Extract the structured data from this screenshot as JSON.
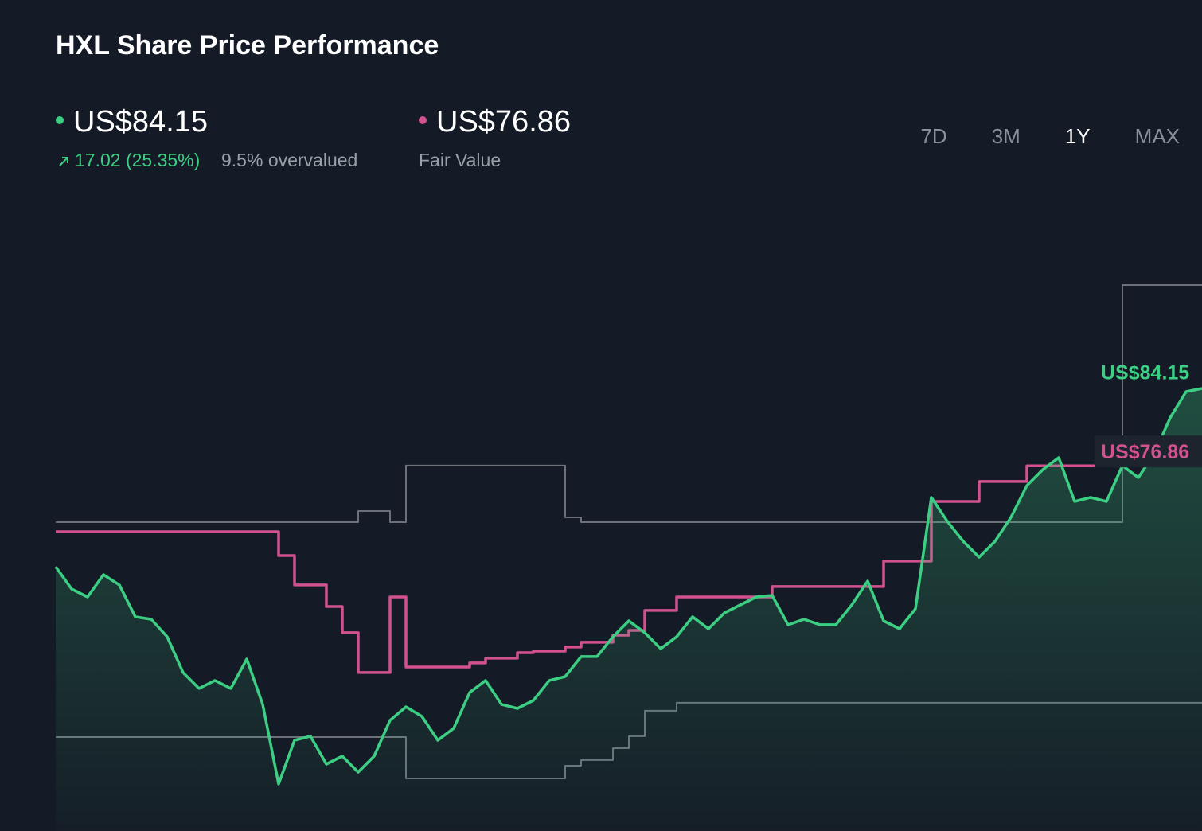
{
  "header": {
    "title": "HXL Share Price Performance",
    "price": "US$84.15",
    "change": "17.02 (25.35%)",
    "valuation": "9.5% overvalued",
    "fair_value": "US$76.86",
    "fair_value_label": "Fair Value",
    "ranges": [
      "7D",
      "3M",
      "1Y",
      "MAX"
    ],
    "selected_range": "1Y"
  },
  "chart_data": {
    "type": "line",
    "ylim": [
      42.45,
      102.75
    ],
    "fill_under": 0,
    "series": [
      {
        "color": "#3ccf84",
        "values": [
          67.35,
          65.25,
          64.5,
          66.6,
          65.63,
          62.63,
          62.4,
          60.75,
          57.38,
          55.88,
          56.63,
          55.88,
          58.65,
          54.38,
          46.88,
          51.0,
          51.38,
          48.75,
          49.5,
          48.0,
          49.5,
          52.88,
          54.15,
          53.25,
          51.0,
          52.13,
          55.5,
          56.63,
          54.38,
          54.0,
          54.75,
          56.63,
          57.0,
          58.88,
          58.88,
          60.75,
          62.25,
          61.13,
          59.63,
          60.75,
          62.63,
          61.5,
          63.0,
          63.75,
          64.5,
          64.65,
          61.88,
          62.4,
          61.88,
          61.88,
          63.75,
          66.0,
          62.25,
          61.5,
          63.38,
          73.88,
          71.63,
          69.75,
          68.25,
          69.75,
          72.0,
          75.0,
          76.5,
          77.63,
          73.5,
          73.88,
          73.5,
          76.88,
          75.75,
          78.0,
          81.38,
          83.85,
          84.15
        ]
      },
      {
        "color": "#d2528f",
        "line_shape": "step",
        "values": [
          70.65,
          70.65,
          70.65,
          70.65,
          70.65,
          70.65,
          70.65,
          70.65,
          70.65,
          70.65,
          70.65,
          70.65,
          70.65,
          70.65,
          68.4,
          65.63,
          65.63,
          63.6,
          61.13,
          57.38,
          57.38,
          64.5,
          57.9,
          57.9,
          57.9,
          57.9,
          58.28,
          58.73,
          58.73,
          59.25,
          59.4,
          59.4,
          59.78,
          60.23,
          60.23,
          60.9,
          61.35,
          63.23,
          63.23,
          64.5,
          64.5,
          64.5,
          64.5,
          64.5,
          64.5,
          65.48,
          65.48,
          65.48,
          65.48,
          65.48,
          65.48,
          65.48,
          67.88,
          67.88,
          67.88,
          73.5,
          73.5,
          73.5,
          75.38,
          75.38,
          75.38,
          76.86,
          76.86,
          76.86,
          76.86,
          76.86,
          76.86,
          76.86,
          76.86,
          76.86,
          76.86,
          76.86,
          76.86
        ]
      },
      {
        "color": "#6b7079",
        "line_shape": "step",
        "values": [
          71.55,
          71.55,
          71.55,
          71.55,
          71.55,
          71.55,
          71.55,
          71.55,
          71.55,
          71.55,
          71.55,
          71.55,
          71.55,
          71.55,
          71.55,
          71.55,
          71.55,
          71.55,
          71.55,
          72.6,
          72.6,
          71.55,
          76.88,
          76.88,
          76.88,
          76.88,
          76.88,
          76.88,
          76.88,
          76.88,
          76.88,
          76.88,
          72.0,
          71.55,
          71.55,
          71.55,
          71.55,
          71.55,
          71.55,
          71.55,
          71.55,
          71.55,
          71.55,
          71.55,
          71.55,
          71.55,
          71.55,
          71.55,
          71.55,
          71.55,
          71.55,
          71.55,
          71.55,
          71.55,
          71.55,
          71.55,
          71.55,
          71.55,
          71.55,
          71.55,
          71.55,
          71.55,
          71.55,
          71.55,
          71.55,
          71.55,
          71.55,
          93.9,
          93.9,
          93.9,
          93.9,
          93.9,
          93.9
        ]
      },
      {
        "color": "#6b7079",
        "line_shape": "step",
        "values": [
          51.3,
          51.3,
          51.3,
          51.3,
          51.3,
          51.3,
          51.3,
          51.3,
          51.3,
          51.3,
          51.3,
          51.3,
          51.3,
          51.3,
          51.3,
          51.3,
          51.3,
          51.3,
          51.3,
          51.3,
          51.3,
          51.3,
          47.4,
          47.4,
          47.4,
          47.4,
          47.4,
          47.4,
          47.4,
          47.4,
          47.4,
          47.4,
          48.6,
          49.13,
          49.13,
          50.25,
          51.38,
          53.78,
          53.78,
          54.53,
          54.53,
          54.53,
          54.53,
          54.53,
          54.53,
          54.53,
          54.53,
          54.53,
          54.53,
          54.53,
          54.53,
          54.53,
          54.53,
          54.53,
          54.53,
          54.53,
          54.53,
          54.53,
          54.53,
          54.53,
          54.53,
          54.53,
          54.53,
          54.53,
          54.53,
          54.53,
          54.53,
          54.53,
          54.53,
          54.53,
          54.53,
          54.53,
          54.53
        ]
      }
    ]
  }
}
